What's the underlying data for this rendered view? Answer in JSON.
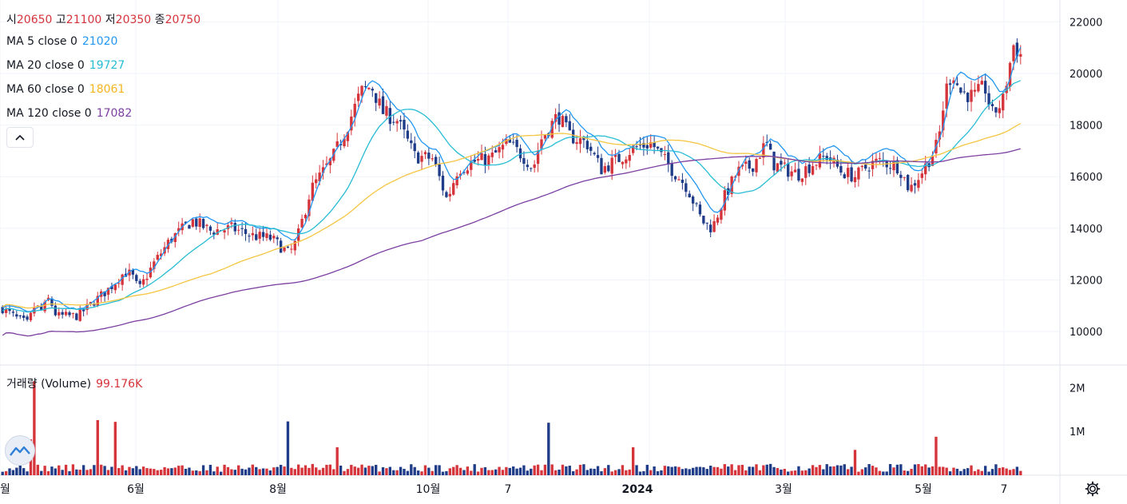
{
  "ohlc_legend": {
    "open_label": "시",
    "open_value": "20650",
    "high_label": "고",
    "high_value": "21100",
    "low_label": "저",
    "low_value": "20350",
    "close_label": "종",
    "close_value": "20750"
  },
  "ma_legend": [
    {
      "label": "MA 5 close 0",
      "value": "21020",
      "color": "#2196f3"
    },
    {
      "label": "MA 20 close 0",
      "value": "19727",
      "color": "#26bcd4"
    },
    {
      "label": "MA 60 close 0",
      "value": "18061",
      "color": "#f5c542"
    },
    {
      "label": "MA 120 close 0",
      "value": "17082",
      "color": "#7b3fa0"
    }
  ],
  "volume_legend": {
    "label": "거래량 (Volume)",
    "value": "99.176K"
  },
  "colors": {
    "up": "#d6343b",
    "down": "#1f3c88",
    "grid": "#f0f3fa",
    "axis_text": "#131722"
  },
  "icons": {
    "collapse": "chevron-up-icon",
    "logo": "chart-logo-icon",
    "settings": "gear-icon"
  },
  "chart_data": {
    "type": "candlestick",
    "price_axis": {
      "ticks": [
        "22000",
        "20000",
        "18000",
        "16000",
        "14000",
        "12000",
        "10000"
      ],
      "ylim": [
        8700,
        22600
      ]
    },
    "volume_axis": {
      "ticks": [
        "2M",
        "1M"
      ],
      "ylim": [
        0,
        2500000
      ]
    },
    "time_axis": {
      "labels": [
        "월",
        "6월",
        "8월",
        "10월",
        "7",
        "2024",
        "3월",
        "5월",
        "7"
      ],
      "bold_label": "2024"
    },
    "grid": true,
    "candle_count": 290,
    "price_path": [
      [
        0,
        10900
      ],
      [
        8,
        10500
      ],
      [
        14,
        10300
      ],
      [
        18,
        11000
      ],
      [
        22,
        10800
      ],
      [
        26,
        11300
      ],
      [
        30,
        10600
      ],
      [
        42,
        10600
      ],
      [
        50,
        11100
      ],
      [
        60,
        11700
      ],
      [
        68,
        12300
      ],
      [
        72,
        12200
      ],
      [
        76,
        11600
      ],
      [
        84,
        12600
      ],
      [
        94,
        13600
      ],
      [
        106,
        14300
      ],
      [
        116,
        13900
      ],
      [
        128,
        14000
      ],
      [
        140,
        13700
      ],
      [
        150,
        13600
      ],
      [
        160,
        13000
      ],
      [
        164,
        13500
      ],
      [
        172,
        15500
      ],
      [
        184,
        16700
      ],
      [
        192,
        17900
      ],
      [
        200,
        19300
      ],
      [
        206,
        19500
      ],
      [
        212,
        18500
      ],
      [
        220,
        18200
      ],
      [
        230,
        16800
      ],
      [
        240,
        16700
      ],
      [
        248,
        15100
      ],
      [
        254,
        16300
      ],
      [
        264,
        16600
      ],
      [
        272,
        16700
      ],
      [
        282,
        17300
      ],
      [
        292,
        16700
      ],
      [
        296,
        16300
      ],
      [
        300,
        17400
      ],
      [
        310,
        18400
      ],
      [
        316,
        17600
      ],
      [
        326,
        17300
      ],
      [
        334,
        16300
      ],
      [
        344,
        16700
      ],
      [
        352,
        17100
      ],
      [
        362,
        17300
      ],
      [
        372,
        16400
      ],
      [
        382,
        15600
      ],
      [
        390,
        14300
      ],
      [
        396,
        14000
      ],
      [
        402,
        15100
      ],
      [
        410,
        16200
      ],
      [
        418,
        16400
      ],
      [
        426,
        17300
      ],
      [
        430,
        16500
      ],
      [
        436,
        16300
      ],
      [
        444,
        16100
      ],
      [
        452,
        16500
      ],
      [
        460,
        16800
      ],
      [
        468,
        16200
      ],
      [
        476,
        16000
      ],
      [
        484,
        16500
      ],
      [
        490,
        16600
      ],
      [
        500,
        16400
      ],
      [
        506,
        15500
      ],
      [
        514,
        16300
      ],
      [
        522,
        17300
      ],
      [
        526,
        19300
      ],
      [
        530,
        20100
      ],
      [
        534,
        19300
      ],
      [
        542,
        19100
      ],
      [
        548,
        19500
      ],
      [
        552,
        18400
      ],
      [
        558,
        18900
      ],
      [
        564,
        21100
      ],
      [
        568,
        20750
      ]
    ],
    "ma_values_first_last": {
      "MA 5 close 0": [
        10900,
        21020
      ],
      "MA 20 close 0": [
        10800,
        19727
      ],
      "MA 60 close 0": [
        10950,
        18061
      ],
      "MA 120 close 0": [
        9850,
        17082
      ]
    }
  }
}
